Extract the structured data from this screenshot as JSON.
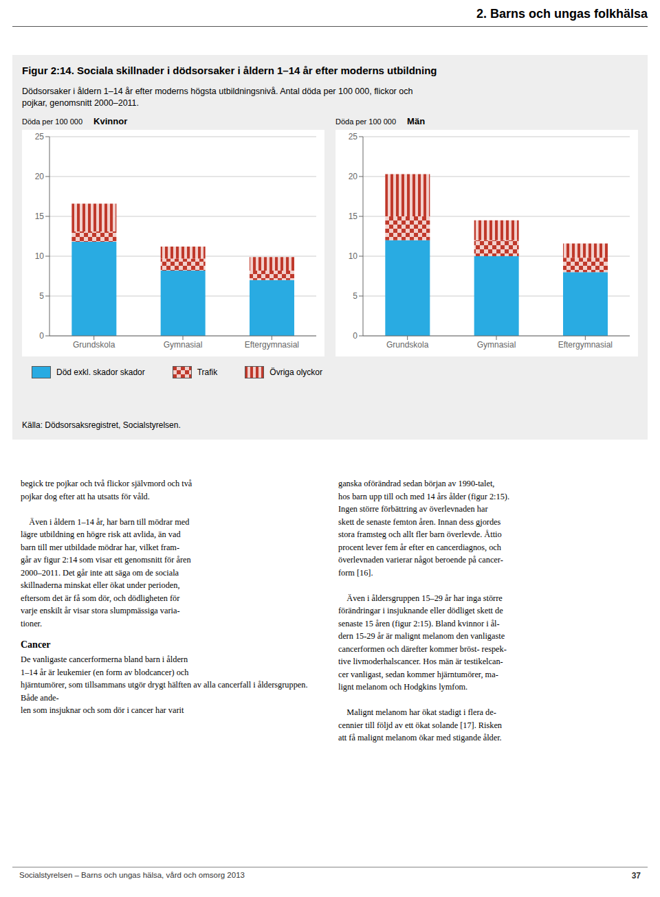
{
  "title": "Figur 2:14. Sociala skillnader i dödsorsaker i åldern 1–14 år efter moderns utbildning",
  "subtitle": [
    "Dödsorsaker i åldern 1–14 år efter moderns högsta utbildningsnivå. Antal döda per 100 000, flickor och",
    "pojkar, genomsnitt 2000–2011."
  ],
  "annotations": {
    "header": "2. Barns och ungas folkhälsa",
    "source": "Källa: Dödsorsaksregistret, Socialstyrelsen.",
    "body_left": [
      [
        "begick tre pojkar och två flickor självmord och två",
        "pojkar dog efter att ha utsatts för våld."
      ],
      [
        "    Även i åldern 1–14 år, har barn till mödrar med",
        "lägre utbildning en högre risk att avlida, än vad",
        "barn till mer utbildade mödrar har, vilket fram-",
        "går av figur 2:14 som visar ett genomsnitt för åren",
        "2000–2011. Det går inte att säga om de sociala",
        "skillnaderna minskat eller ökat under perioden,",
        "eftersom det är få som dör, och dödligheten för",
        "varje enskilt år visar stora slumpmässiga varia-",
        "tioner."
      ]
    ],
    "section": {
      "heading": "Cancer",
      "lines": [
        "De vanligaste cancerformerna bland barn i åldern",
        "1–14 år är leukemier (en form av blodcancer) och",
        "hjärntumörer, som tillsammans utgör drygt hälften av alla cancerfall i åldersgruppen. Både ande-",
        "len som insjuknar och som dör i cancer har varit"
      ]
    },
    "body_right": [
      [
        "ganska oförändrad sedan början av 1990-talet,",
        "hos barn upp till och med 14 års ålder (figur 2:15).",
        "Ingen större förbättring av överlevnaden har",
        "skett de senaste femton åren. Innan dess gjordes",
        "stora framsteg och allt fler barn överlevde. Åttio",
        "procent lever fem år efter en cancerdiagnos, och",
        "överlevnaden varierar något beroende på cancer-",
        "form [16]."
      ],
      [
        "    Även i åldersgruppen 15–29 år har inga större",
        "förändringar i insjuknande eller dödliget skett de",
        "senaste 15 åren (figur 2:15). Bland kvinnor i ål-",
        "dern 15-29 år är malignt melanom den vanligaste",
        "cancerformen och därefter kommer bröst- respek-",
        "tive livmoderhalscancer. Hos män är testikelcan-",
        "cer vanligast, sedan kommer hjärntumörer, ma-",
        "lignt melanom och Hodgkins lymfom."
      ],
      [
        "    Malignt melanom har ökat stadigt i flera de-",
        "cennier till följd av ett ökat solande [17]. Risken",
        "att få malignt melanom ökar med stigande ålder."
      ]
    ],
    "publisher": "Socialstyrelsen – Barns och ungas hälsa, vård och omsorg 2013",
    "page_number": "37"
  },
  "chart_data": [
    {
      "type": "bar",
      "title": "Kvinnor",
      "ylabel": "Döda per 100 000",
      "categories": [
        "Grundskola",
        "Gymnasial",
        "Eftergymnasial"
      ],
      "stacked": true,
      "grid": true,
      "legend": "bottom",
      "ylim": [
        0,
        25
      ],
      "yticks": [
        0,
        5,
        10,
        15,
        20,
        25
      ],
      "series": [
        {
          "name": "Död exkl. skador skador",
          "color": "#29ABE2",
          "values": [
            11.8,
            8.2,
            7.0
          ]
        },
        {
          "name": "Trafik",
          "color": "#C0392B",
          "values": [
            1.3,
            1.5,
            1.2
          ]
        },
        {
          "name": "Övriga olyckor",
          "color": "#C0392B",
          "values": [
            3.5,
            1.5,
            1.7
          ]
        }
      ]
    },
    {
      "type": "bar",
      "title": "Män",
      "ylabel": "Döda per 100 000",
      "categories": [
        "Grundskola",
        "Gymnasial",
        "Eftergymnasial"
      ],
      "stacked": true,
      "grid": true,
      "legend": "bottom",
      "ylim": [
        0,
        25
      ],
      "yticks": [
        0,
        5,
        10,
        15,
        20,
        25
      ],
      "series": [
        {
          "name": "Död exkl. skador skador",
          "color": "#29ABE2",
          "values": [
            12.0,
            10.0,
            8.0
          ]
        },
        {
          "name": "Trafik",
          "color": "#C0392B",
          "values": [
            3.0,
            2.0,
            1.8
          ]
        },
        {
          "name": "Övriga olyckor",
          "color": "#C0392B",
          "values": [
            5.3,
            2.5,
            1.8
          ]
        }
      ]
    }
  ]
}
